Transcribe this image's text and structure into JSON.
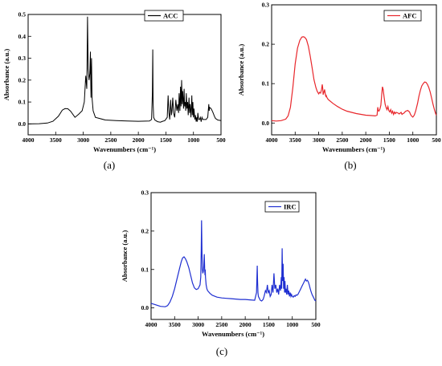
{
  "chart_data": [
    {
      "type": "line",
      "panel_label": "(a)",
      "xlabel": "Wavenumbers (cm⁻¹)",
      "ylabel": "Absorbance (a.u.)",
      "xlim": [
        4000,
        500
      ],
      "ylim": [
        -0.05,
        0.5
      ],
      "x_ticks": [
        4000,
        3500,
        3000,
        2500,
        2000,
        1500,
        1000,
        500
      ],
      "x_tick_labels": [
        "4000",
        "3500",
        "3000",
        "2500",
        "2000",
        "1500",
        "1000",
        "500"
      ],
      "y_ticks": [
        0.0,
        0.1,
        0.2,
        0.3,
        0.4,
        0.5
      ],
      "y_tick_labels": [
        "0.0",
        "0.1",
        "0.2",
        "0.3",
        "0.4",
        "0.5"
      ],
      "legend_position": "top-right",
      "color": "#000000",
      "series": [
        {
          "name": "ACC",
          "x": [
            4000,
            3800,
            3650,
            3550,
            3450,
            3380,
            3330,
            3280,
            3230,
            3150,
            3080,
            3020,
            2980,
            2955,
            2935,
            2922,
            2910,
            2895,
            2880,
            2870,
            2860,
            2850,
            2840,
            2820,
            2780,
            2600,
            2400,
            2200,
            2000,
            1800,
            1760,
            1745,
            1738,
            1732,
            1722,
            1700,
            1650,
            1600,
            1560,
            1520,
            1475,
            1460,
            1445,
            1430,
            1415,
            1400,
            1390,
            1375,
            1360,
            1340,
            1320,
            1300,
            1285,
            1270,
            1260,
            1245,
            1235,
            1225,
            1215,
            1205,
            1195,
            1180,
            1170,
            1160,
            1150,
            1140,
            1130,
            1118,
            1105,
            1095,
            1080,
            1070,
            1060,
            1045,
            1030,
            1020,
            1010,
            1000,
            990,
            975,
            965,
            950,
            940,
            930,
            920,
            905,
            890,
            875,
            860,
            845,
            830,
            800,
            770,
            740,
            722,
            715,
            705,
            680,
            650,
            620,
            600,
            560,
            520,
            500
          ],
          "y": [
            0.0,
            0.001,
            0.004,
            0.012,
            0.035,
            0.063,
            0.07,
            0.069,
            0.058,
            0.03,
            0.045,
            0.06,
            0.1,
            0.22,
            0.16,
            0.49,
            0.25,
            0.2,
            0.23,
            0.33,
            0.12,
            0.3,
            0.12,
            0.06,
            0.03,
            0.018,
            0.015,
            0.013,
            0.012,
            0.013,
            0.02,
            0.14,
            0.34,
            0.1,
            0.03,
            0.018,
            0.01,
            0.008,
            0.012,
            0.015,
            0.03,
            0.13,
            0.05,
            0.02,
            0.11,
            0.04,
            0.06,
            0.12,
            0.05,
            0.03,
            0.11,
            0.06,
            0.09,
            0.05,
            0.14,
            0.06,
            0.17,
            0.08,
            0.2,
            0.09,
            0.15,
            0.07,
            0.16,
            0.08,
            0.1,
            0.06,
            0.14,
            0.07,
            0.1,
            0.04,
            0.12,
            0.05,
            0.09,
            0.03,
            0.13,
            0.04,
            0.1,
            0.03,
            0.07,
            0.02,
            0.04,
            0.01,
            0.03,
            0.01,
            0.05,
            0.02,
            0.02,
            0.03,
            0.01,
            0.03,
            0.02,
            0.02,
            0.02,
            0.03,
            0.09,
            0.06,
            0.075,
            0.07,
            0.055,
            0.035,
            0.025,
            0.018,
            0.016,
            0.015
          ]
        }
      ]
    },
    {
      "type": "line",
      "panel_label": "(b)",
      "xlabel": "Wavenumbers (cm⁻¹)",
      "ylabel": "Absorbance (a.u.)",
      "xlim": [
        4000,
        500
      ],
      "ylim": [
        -0.03,
        0.3
      ],
      "x_ticks": [
        4000,
        3500,
        3000,
        2500,
        2000,
        1500,
        1000,
        500
      ],
      "x_tick_labels": [
        "4000",
        "3500",
        "3000",
        "2500",
        "2000",
        "1500",
        "1000",
        "500"
      ],
      "y_ticks": [
        0.0,
        0.1,
        0.2,
        0.3
      ],
      "y_tick_labels": [
        "0.0",
        "0.1",
        "0.2",
        "0.3"
      ],
      "legend_position": "top-right",
      "color": "#e8262b",
      "series": [
        {
          "name": "AFC",
          "x": [
            4000,
            3900,
            3800,
            3700,
            3650,
            3600,
            3550,
            3500,
            3450,
            3400,
            3360,
            3330,
            3300,
            3260,
            3220,
            3180,
            3140,
            3100,
            3060,
            3030,
            3000,
            2980,
            2960,
            2940,
            2925,
            2915,
            2905,
            2890,
            2875,
            2860,
            2850,
            2840,
            2825,
            2800,
            2700,
            2600,
            2500,
            2400,
            2300,
            2200,
            2100,
            2000,
            1900,
            1800,
            1760,
            1745,
            1735,
            1720,
            1700,
            1680,
            1660,
            1645,
            1630,
            1610,
            1590,
            1570,
            1550,
            1530,
            1510,
            1490,
            1470,
            1450,
            1430,
            1410,
            1390,
            1370,
            1350,
            1330,
            1310,
            1290,
            1270,
            1250,
            1230,
            1210,
            1190,
            1170,
            1150,
            1130,
            1110,
            1090,
            1070,
            1050,
            1030,
            1000,
            970,
            940,
            900,
            870,
            840,
            810,
            780,
            750,
            720,
            690,
            660,
            630,
            600,
            570,
            540,
            510,
            500
          ],
          "y": [
            0.006,
            0.005,
            0.006,
            0.01,
            0.018,
            0.04,
            0.09,
            0.15,
            0.19,
            0.21,
            0.218,
            0.219,
            0.218,
            0.212,
            0.195,
            0.17,
            0.14,
            0.11,
            0.09,
            0.08,
            0.074,
            0.078,
            0.076,
            0.085,
            0.098,
            0.088,
            0.072,
            0.078,
            0.085,
            0.073,
            0.068,
            0.07,
            0.065,
            0.06,
            0.05,
            0.042,
            0.035,
            0.03,
            0.027,
            0.024,
            0.022,
            0.02,
            0.019,
            0.018,
            0.02,
            0.04,
            0.032,
            0.03,
            0.035,
            0.045,
            0.075,
            0.092,
            0.085,
            0.065,
            0.048,
            0.04,
            0.034,
            0.042,
            0.032,
            0.028,
            0.034,
            0.025,
            0.03,
            0.022,
            0.028,
            0.024,
            0.027,
            0.026,
            0.025,
            0.023,
            0.025,
            0.027,
            0.022,
            0.024,
            0.025,
            0.028,
            0.03,
            0.031,
            0.032,
            0.03,
            0.028,
            0.022,
            0.018,
            0.015,
            0.02,
            0.03,
            0.05,
            0.068,
            0.083,
            0.094,
            0.1,
            0.104,
            0.103,
            0.098,
            0.09,
            0.078,
            0.063,
            0.047,
            0.033,
            0.022,
            0.02
          ]
        }
      ]
    },
    {
      "type": "line",
      "panel_label": "(c)",
      "xlabel": "Wavenumbers (cm⁻¹)",
      "ylabel": "Absorbance (a.u.)",
      "xlim": [
        4000,
        500
      ],
      "ylim": [
        -0.03,
        0.3
      ],
      "x_ticks": [
        4000,
        3500,
        3000,
        2500,
        2000,
        1500,
        1000,
        500
      ],
      "x_tick_labels": [
        "4000",
        "3500",
        "3000",
        "2500",
        "2000",
        "1500",
        "1000",
        "500"
      ],
      "y_ticks": [
        0.0,
        0.1,
        0.2,
        0.3
      ],
      "y_tick_labels": [
        "0.0",
        "0.1",
        "0.2",
        "0.3"
      ],
      "legend_position": "top-right",
      "color": "#1f2fd1",
      "series": [
        {
          "name": "IRC",
          "x": [
            4000,
            3900,
            3800,
            3700,
            3650,
            3600,
            3550,
            3500,
            3450,
            3400,
            3360,
            3330,
            3300,
            3270,
            3240,
            3200,
            3160,
            3120,
            3080,
            3040,
            3000,
            2980,
            2960,
            2945,
            2935,
            2928,
            2920,
            2910,
            2900,
            2890,
            2880,
            2870,
            2862,
            2855,
            2850,
            2845,
            2838,
            2830,
            2815,
            2800,
            2750,
            2700,
            2600,
            2500,
            2400,
            2300,
            2200,
            2100,
            2000,
            1900,
            1800,
            1760,
            1745,
            1738,
            1730,
            1720,
            1700,
            1680,
            1650,
            1620,
            1600,
            1570,
            1550,
            1530,
            1510,
            1490,
            1470,
            1450,
            1430,
            1410,
            1390,
            1370,
            1350,
            1330,
            1310,
            1290,
            1270,
            1250,
            1235,
            1225,
            1215,
            1205,
            1195,
            1185,
            1175,
            1165,
            1155,
            1145,
            1135,
            1120,
            1105,
            1090,
            1075,
            1060,
            1045,
            1030,
            1015,
            1000,
            980,
            960,
            940,
            920,
            900,
            880,
            860,
            840,
            820,
            800,
            780,
            760,
            740,
            720,
            700,
            680,
            660,
            640,
            620,
            600,
            580,
            560,
            540,
            520,
            500
          ],
          "y": [
            0.012,
            0.008,
            0.004,
            0.003,
            0.006,
            0.015,
            0.03,
            0.05,
            0.075,
            0.1,
            0.12,
            0.13,
            0.133,
            0.128,
            0.12,
            0.105,
            0.085,
            0.065,
            0.052,
            0.048,
            0.05,
            0.055,
            0.06,
            0.08,
            0.15,
            0.228,
            0.15,
            0.1,
            0.09,
            0.095,
            0.11,
            0.14,
            0.1,
            0.085,
            0.1,
            0.08,
            0.07,
            0.06,
            0.05,
            0.045,
            0.038,
            0.033,
            0.028,
            0.026,
            0.025,
            0.024,
            0.023,
            0.022,
            0.022,
            0.021,
            0.02,
            0.04,
            0.11,
            0.07,
            0.04,
            0.03,
            0.025,
            0.02,
            0.018,
            0.022,
            0.03,
            0.045,
            0.04,
            0.06,
            0.04,
            0.045,
            0.03,
            0.035,
            0.06,
            0.04,
            0.09,
            0.05,
            0.06,
            0.04,
            0.05,
            0.035,
            0.06,
            0.045,
            0.08,
            0.05,
            0.155,
            0.07,
            0.115,
            0.05,
            0.08,
            0.04,
            0.07,
            0.04,
            0.05,
            0.035,
            0.06,
            0.035,
            0.045,
            0.03,
            0.04,
            0.03,
            0.035,
            0.03,
            0.028,
            0.032,
            0.03,
            0.034,
            0.033,
            0.035,
            0.04,
            0.045,
            0.05,
            0.055,
            0.06,
            0.065,
            0.07,
            0.075,
            0.07,
            0.072,
            0.068,
            0.06,
            0.05,
            0.042,
            0.035,
            0.03,
            0.025,
            0.02,
            0.018
          ]
        }
      ]
    }
  ]
}
